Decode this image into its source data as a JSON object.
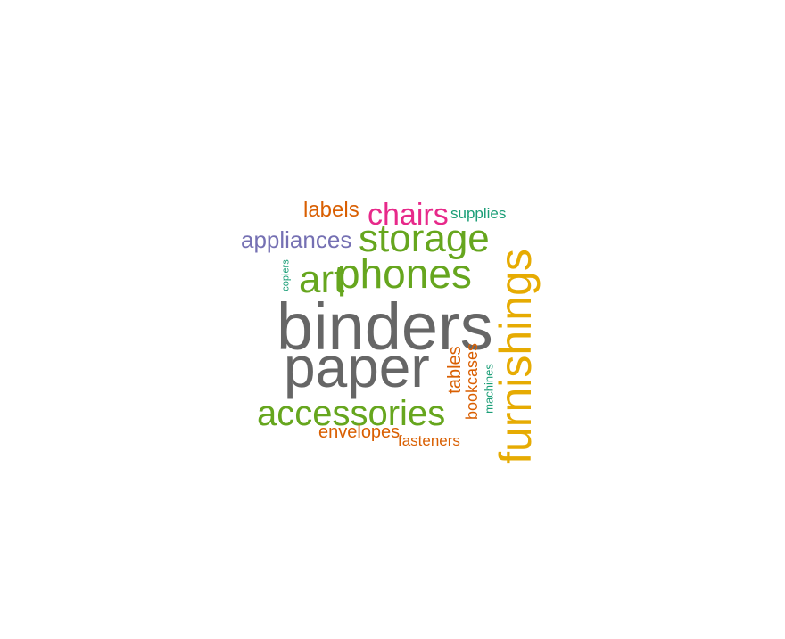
{
  "palette": {
    "gray": "#666666",
    "green": "#66a61e",
    "gold": "#e6ab02",
    "purple": "#7570b3",
    "pink": "#e7298a",
    "orange": "#d95f02",
    "teal": "#1b9e77"
  },
  "words": [
    {
      "text": "binders",
      "color": "#666666"
    },
    {
      "text": "paper",
      "color": "#666666"
    },
    {
      "text": "furnishings",
      "color": "#e6ab02"
    },
    {
      "text": "phones",
      "color": "#66a61e"
    },
    {
      "text": "storage",
      "color": "#66a61e"
    },
    {
      "text": "accessories",
      "color": "#66a61e"
    },
    {
      "text": "art",
      "color": "#66a61e"
    },
    {
      "text": "appliances",
      "color": "#7570b3"
    },
    {
      "text": "chairs",
      "color": "#e7298a"
    },
    {
      "text": "labels",
      "color": "#d95f02"
    },
    {
      "text": "tables",
      "color": "#d95f02"
    },
    {
      "text": "bookcases",
      "color": "#d95f02"
    },
    {
      "text": "envelopes",
      "color": "#d95f02"
    },
    {
      "text": "fasteners",
      "color": "#d95f02"
    },
    {
      "text": "supplies",
      "color": "#1b9e77"
    },
    {
      "text": "machines",
      "color": "#1b9e77"
    },
    {
      "text": "copiers",
      "color": "#1b9e77"
    }
  ]
}
